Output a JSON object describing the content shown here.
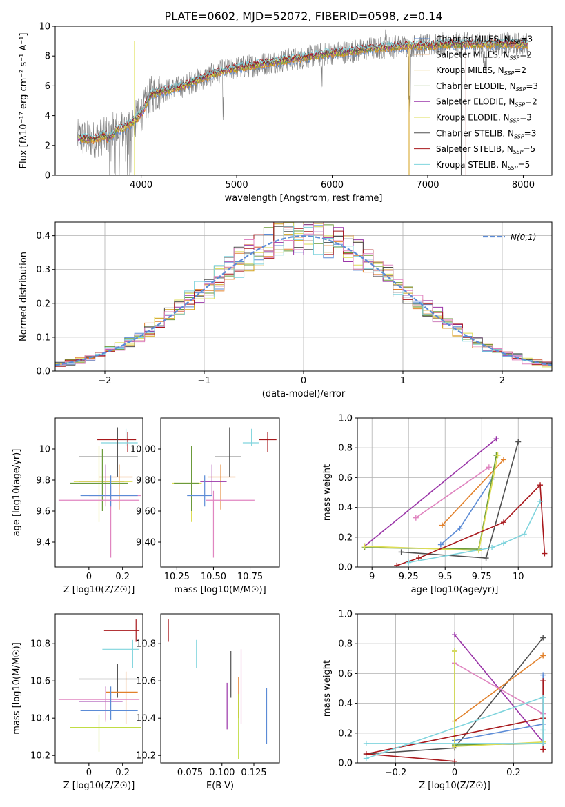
{
  "colors": {
    "chabrier_miles": "#5b8bd6",
    "salpeter_miles": "#e2812b",
    "kroupa_miles": "#d4a21c",
    "chabrier_elodie": "#6b9a3a",
    "salpeter_elodie": "#9a35a8",
    "kroupa_elodie": "#dddd55",
    "chabrier_stelib": "#505050",
    "salpeter_stelib": "#a8181c",
    "kroupa_stelib": "#7fd4dd",
    "pink": "#e085c0",
    "lime": "#b8d82a",
    "data": "#808080",
    "gauss": "#5b8bd6"
  },
  "legend_entries": [
    {
      "label": "Chabrier MILES, N",
      "sub": "SSP",
      "tail": "=3",
      "color": "chabrier_miles"
    },
    {
      "label": "Salpeter MILES, N",
      "sub": "SSP",
      "tail": "=2",
      "color": "salpeter_miles"
    },
    {
      "label": "Kroupa MILES, N",
      "sub": "SSP",
      "tail": "=2",
      "color": "kroupa_miles"
    },
    {
      "label": "Chabrier ELODIE, N",
      "sub": "SSP",
      "tail": "=3",
      "color": "chabrier_elodie"
    },
    {
      "label": "Salpeter ELODIE, N",
      "sub": "SSP",
      "tail": "=2",
      "color": "salpeter_elodie"
    },
    {
      "label": "Kroupa ELODIE, N",
      "sub": "SSP",
      "tail": "=3",
      "color": "kroupa_elodie"
    },
    {
      "label": "Chabrier STELIB, N",
      "sub": "SSP",
      "tail": "=3",
      "color": "chabrier_stelib"
    },
    {
      "label": "Salpeter STELIB, N",
      "sub": "SSP",
      "tail": "=5",
      "color": "salpeter_stelib"
    },
    {
      "label": "Kroupa STELIB, N",
      "sub": "SSP",
      "tail": "=5",
      "color": "kroupa_stelib"
    }
  ],
  "chart_data": [
    {
      "id": "spectrum",
      "type": "line",
      "title": "PLATE=0602, MJD=52072, FIBERID=0598, z=0.14",
      "xlabel": "wavelength [Angstrom, rest frame]",
      "ylabel": "Flux [fλ10⁻¹⁷ erg cm⁻² s⁻¹ A⁻¹]",
      "xlim": [
        3100,
        8300
      ],
      "ylim": [
        0,
        10
      ],
      "xticks": [
        4000,
        5000,
        6000,
        7000,
        8000
      ],
      "yticks": [
        0,
        2,
        4,
        6,
        8,
        10
      ],
      "continuum_x": [
        3340,
        3500,
        3600,
        3700,
        3800,
        3900,
        4000,
        4100,
        4200,
        4400,
        4600,
        4800,
        5000,
        5200,
        5400,
        5600,
        5800,
        6000,
        6200,
        6400,
        6600,
        6800,
        7000,
        7200,
        7400,
        7600,
        7800,
        8000
      ],
      "continuum_y": [
        2.5,
        2.4,
        2.6,
        3.0,
        3.1,
        3.5,
        4.1,
        5.4,
        5.6,
        5.9,
        6.4,
        6.9,
        7.2,
        7.4,
        7.6,
        7.8,
        8.0,
        8.2,
        8.3,
        8.5,
        8.6,
        8.7,
        8.7,
        8.8,
        8.8,
        8.8,
        8.8,
        8.8
      ],
      "series": [
        {
          "name": "Chabrier MILES, NSSP=3",
          "color": "chabrier_miles"
        },
        {
          "name": "Salpeter MILES, NSSP=2",
          "color": "salpeter_miles"
        },
        {
          "name": "Kroupa MILES, NSSP=2",
          "color": "kroupa_miles"
        },
        {
          "name": "Chabrier ELODIE, NSSP=3",
          "color": "chabrier_elodie"
        },
        {
          "name": "Salpeter ELODIE, NSSP=2",
          "color": "salpeter_elodie"
        },
        {
          "name": "Kroupa ELODIE, NSSP=3",
          "color": "kroupa_elodie"
        },
        {
          "name": "Chabrier STELIB, NSSP=3",
          "color": "chabrier_stelib"
        },
        {
          "name": "Salpeter STELIB, NSSP=5",
          "color": "salpeter_stelib"
        },
        {
          "name": "Kroupa STELIB, NSSP=5",
          "color": "kroupa_stelib"
        }
      ]
    },
    {
      "id": "residuals",
      "type": "line",
      "xlabel": "(data-model)/error",
      "ylabel": "Normed distribution",
      "xlim": [
        -2.5,
        2.5
      ],
      "ylim": [
        0,
        0.44
      ],
      "xticks": [
        -2,
        -1,
        0,
        1,
        2
      ],
      "yticks": [
        0.0,
        0.1,
        0.2,
        0.3,
        0.4
      ],
      "grid": true,
      "legend": "N(0,1)",
      "bin_width": 0.1
    },
    {
      "id": "age_vs_Z",
      "type": "scatter",
      "xlabel": "Z [log10(Z/Z☉)]",
      "ylabel": "age [log10(age/yr)]",
      "xlim": [
        -0.2,
        0.32
      ],
      "ylim": [
        9.24,
        10.2
      ],
      "xticks": [
        0.0,
        0.2
      ],
      "yticks": [
        9.4,
        9.6,
        9.8,
        10.0
      ],
      "points": [
        {
          "x": 0.23,
          "xerr": [
            0.18,
            0.05
          ],
          "y": 10.06,
          "yerr": [
            0.08,
            0.05
          ],
          "color": "salpeter_stelib"
        },
        {
          "x": 0.22,
          "xerr": [
            0.15,
            0.07
          ],
          "y": 10.04,
          "yerr": [
            0.02,
            0.09
          ],
          "color": "kroupa_stelib"
        },
        {
          "x": 0.17,
          "xerr": [
            0.23,
            0.12
          ],
          "y": 9.95,
          "yerr": [
            0.13,
            0.19
          ],
          "color": "chabrier_stelib"
        },
        {
          "x": 0.18,
          "xerr": [
            0.12,
            0.08
          ],
          "y": 9.82,
          "yerr": [
            0.21,
            0.08
          ],
          "color": "salpeter_miles"
        },
        {
          "x": 0.1,
          "xerr": [
            0.16,
            0.11
          ],
          "y": 9.79,
          "yerr": [
            0.09,
            0.11
          ],
          "color": "salpeter_elodie"
        },
        {
          "x": 0.06,
          "xerr": [
            0.15,
            0.2
          ],
          "y": 9.79,
          "yerr": [
            0.26,
            0.23
          ],
          "color": "kroupa_elodie"
        },
        {
          "x": 0.08,
          "xerr": [
            0.19,
            0.15
          ],
          "y": 9.78,
          "yerr": [
            0.18,
            0.22
          ],
          "color": "chabrier_elodie"
        },
        {
          "x": 0.13,
          "xerr": [
            0.13,
            0.18
          ],
          "y": 9.7,
          "yerr": [
            0.4,
            0.06
          ],
          "color": "pink"
        },
        {
          "x": 0.13,
          "xerr": [
            0.18,
            0.16
          ],
          "y": 9.7,
          "yerr": [
            0.07,
            0.13
          ],
          "color": "chabrier_miles"
        },
        {
          "x": 0.1,
          "xerr": [
            0.28,
            0.2
          ],
          "y": 9.67,
          "yerr": [
            0.04,
            0.04
          ],
          "color": "pink"
        }
      ]
    },
    {
      "id": "age_vs_mass",
      "type": "scatter",
      "xlabel": "mass [log10(M/M☉)]",
      "ylabel": "",
      "xlim": [
        10.14,
        10.95
      ],
      "ylim": [
        9.24,
        10.2
      ],
      "xticks": [
        10.25,
        10.5,
        10.75
      ],
      "yticks": [
        9.4,
        9.6,
        9.8,
        10.0
      ],
      "points": [
        {
          "x": 10.87,
          "xerr": [
            0.06,
            0.06
          ],
          "y": 10.06,
          "yerr": [
            0.08,
            0.05
          ],
          "color": "salpeter_stelib"
        },
        {
          "x": 10.76,
          "xerr": [
            0.06,
            0.05
          ],
          "y": 10.04,
          "yerr": [
            0.02,
            0.09
          ],
          "color": "kroupa_stelib"
        },
        {
          "x": 10.61,
          "xerr": [
            0.1,
            0.08
          ],
          "y": 9.95,
          "yerr": [
            0.13,
            0.19
          ],
          "color": "chabrier_stelib"
        },
        {
          "x": 10.55,
          "xerr": [
            0.09,
            0.1
          ],
          "y": 9.82,
          "yerr": [
            0.21,
            0.08
          ],
          "color": "salpeter_miles"
        },
        {
          "x": 10.49,
          "xerr": [
            0.08,
            0.1
          ],
          "y": 9.79,
          "yerr": [
            0.09,
            0.11
          ],
          "color": "salpeter_elodie"
        },
        {
          "x": 10.35,
          "xerr": [
            0.13,
            0.07
          ],
          "y": 9.78,
          "yerr": [
            0.25,
            0.23
          ],
          "color": "kroupa_elodie"
        },
        {
          "x": 10.35,
          "xerr": [
            0.12,
            0.05
          ],
          "y": 9.78,
          "yerr": [
            0.18,
            0.24
          ],
          "color": "chabrier_elodie"
        },
        {
          "x": 10.5,
          "xerr": [
            0.05,
            0.28
          ],
          "y": 9.67,
          "yerr": [
            0.37,
            0.06
          ],
          "color": "pink"
        },
        {
          "x": 10.44,
          "xerr": [
            0.12,
            0.05
          ],
          "y": 9.7,
          "yerr": [
            0.07,
            0.13
          ],
          "color": "chabrier_miles"
        }
      ]
    },
    {
      "id": "mass_weight_vs_age",
      "type": "line",
      "xlabel": "age [log10(age/yr)]",
      "ylabel": "mass weight",
      "xlim": [
        8.9,
        10.23
      ],
      "ylim": [
        0,
        1.0
      ],
      "xticks": [
        9.0,
        9.25,
        9.5,
        9.75,
        10.0
      ],
      "yticks": [
        0.0,
        0.2,
        0.4,
        0.6,
        0.8,
        1.0
      ],
      "grid": true,
      "series": [
        {
          "color": "salpeter_elodie",
          "x": [
            8.95,
            9.85
          ],
          "y": [
            0.14,
            0.86
          ]
        },
        {
          "color": "chabrier_stelib",
          "x": [
            9.2,
            9.78,
            10.0
          ],
          "y": [
            0.1,
            0.06,
            0.84
          ]
        },
        {
          "color": "salpeter_miles",
          "x": [
            9.48,
            9.9
          ],
          "y": [
            0.28,
            0.72
          ]
        },
        {
          "color": "pink",
          "x": [
            9.3,
            9.8
          ],
          "y": [
            0.33,
            0.67
          ]
        },
        {
          "color": "chabrier_miles",
          "x": [
            9.47,
            9.6,
            9.82
          ],
          "y": [
            0.15,
            0.26,
            0.59
          ]
        },
        {
          "color": "chabrier_elodie",
          "x": [
            8.95,
            9.73,
            9.85
          ],
          "y": [
            0.13,
            0.12,
            0.75
          ]
        },
        {
          "color": "kroupa_elodie",
          "x": [
            8.95,
            9.73,
            9.86
          ],
          "y": [
            0.14,
            0.11,
            0.75
          ]
        },
        {
          "color": "salpeter_stelib",
          "x": [
            9.17,
            9.32,
            9.9,
            10.15,
            10.18
          ],
          "y": [
            0.01,
            0.06,
            0.3,
            0.55,
            0.09
          ]
        },
        {
          "color": "kroupa_stelib",
          "x": [
            9.25,
            9.82,
            9.9,
            10.04,
            10.15
          ],
          "y": [
            0.03,
            0.13,
            0.16,
            0.22,
            0.44
          ]
        }
      ]
    },
    {
      "id": "mass_vs_Z",
      "type": "scatter",
      "xlabel": "Z [log10(Z/Z☉)]",
      "ylabel": "mass [log10(M/M☉)]",
      "xlim": [
        -0.2,
        0.32
      ],
      "ylim": [
        10.16,
        10.96
      ],
      "xticks": [
        0.0,
        0.2
      ],
      "yticks": [
        10.2,
        10.4,
        10.6,
        10.8
      ],
      "points": [
        {
          "x": 0.28,
          "xerr": [
            0.19,
            0.02
          ],
          "y": 10.87,
          "yerr": [
            0.06,
            0.06
          ],
          "color": "salpeter_stelib"
        },
        {
          "x": 0.26,
          "xerr": [
            0.18,
            0.04
          ],
          "y": 10.77,
          "yerr": [
            0.1,
            0.05
          ],
          "color": "kroupa_stelib"
        },
        {
          "x": 0.17,
          "xerr": [
            0.23,
            0.13
          ],
          "y": 10.61,
          "yerr": [
            0.1,
            0.08
          ],
          "color": "chabrier_stelib"
        },
        {
          "x": 0.22,
          "xerr": [
            0.12,
            0.07
          ],
          "y": 10.54,
          "yerr": [
            0.17,
            0.11
          ],
          "color": "salpeter_miles"
        },
        {
          "x": 0.1,
          "xerr": [
            0.16,
            0.1
          ],
          "y": 10.49,
          "yerr": [
            0.1,
            0.08
          ],
          "color": "salpeter_elodie"
        },
        {
          "x": 0.1,
          "xerr": [
            0.28,
            0.2
          ],
          "y": 10.5,
          "yerr": [
            0.12,
            0.06
          ],
          "color": "pink"
        },
        {
          "x": 0.13,
          "xerr": [
            0.18,
            0.16
          ],
          "y": 10.44,
          "yerr": [
            0.05,
            0.13
          ],
          "color": "chabrier_miles"
        },
        {
          "x": 0.06,
          "xerr": [
            0.17,
            0.25
          ],
          "y": 10.35,
          "yerr": [
            0.13,
            0.07
          ],
          "color": "lime"
        }
      ]
    },
    {
      "id": "mass_vs_ebv",
      "type": "scatter",
      "xlabel": "E(B-V)",
      "ylabel": "",
      "xlim": [
        0.052,
        0.145
      ],
      "ylim": [
        10.16,
        10.96
      ],
      "xticks": [
        0.075,
        0.1,
        0.125
      ],
      "yticks": [
        10.2,
        10.4,
        10.6,
        10.8
      ],
      "points": [
        {
          "x": 0.058,
          "y": 10.87,
          "yerr": [
            0.06,
            0.06
          ],
          "color": "salpeter_stelib"
        },
        {
          "x": 0.08,
          "y": 10.77,
          "yerr": [
            0.1,
            0.05
          ],
          "color": "kroupa_stelib"
        },
        {
          "x": 0.107,
          "y": 10.61,
          "yerr": [
            0.1,
            0.15
          ],
          "color": "chabrier_stelib"
        },
        {
          "x": 0.115,
          "y": 10.54,
          "yerr": [
            0.17,
            0.23
          ],
          "color": "pink"
        },
        {
          "x": 0.113,
          "y": 10.49,
          "yerr": [
            0.09,
            0.13
          ],
          "color": "salpeter_miles"
        },
        {
          "x": 0.104,
          "y": 10.47,
          "yerr": [
            0.13,
            0.12
          ],
          "color": "salpeter_elodie"
        },
        {
          "x": 0.113,
          "y": 10.35,
          "yerr": [
            0.17,
            0.18
          ],
          "color": "lime"
        },
        {
          "x": 0.135,
          "y": 10.42,
          "yerr": [
            0.16,
            0.14
          ],
          "color": "chabrier_miles"
        }
      ]
    },
    {
      "id": "mass_weight_vs_Z",
      "type": "line",
      "xlabel": "Z [log10(Z/Z☉)]",
      "ylabel": "mass weight",
      "xlim": [
        -0.33,
        0.33
      ],
      "ylim": [
        0,
        1.0
      ],
      "xticks": [
        -0.2,
        0.0,
        0.2
      ],
      "yticks": [
        0.0,
        0.2,
        0.4,
        0.6,
        0.8,
        1.0
      ],
      "grid": true,
      "series": [
        {
          "color": "salpeter_elodie",
          "x": [
            0.0,
            0.3
          ],
          "y": [
            0.86,
            0.14
          ]
        },
        {
          "color": "chabrier_stelib",
          "x": [
            -0.3,
            0.0,
            0.3
          ],
          "y": [
            0.06,
            0.1,
            0.84
          ]
        },
        {
          "color": "salpeter_miles",
          "x": [
            0.0,
            0.3
          ],
          "y": [
            0.28,
            0.72
          ]
        },
        {
          "color": "pink",
          "x": [
            0.0,
            0.3
          ],
          "y": [
            0.67,
            0.33
          ]
        },
        {
          "color": "chabrier_miles",
          "x": [
            0.0,
            0.3,
            0.3
          ],
          "y": [
            0.15,
            0.26,
            0.59
          ]
        },
        {
          "color": "chabrier_elodie",
          "x": [
            0.0,
            0.0,
            0.3
          ],
          "y": [
            0.75,
            0.12,
            0.13
          ]
        },
        {
          "color": "kroupa_elodie",
          "x": [
            0.0,
            0.0,
            0.3
          ],
          "y": [
            0.75,
            0.11,
            0.14
          ]
        },
        {
          "color": "salpeter_stelib",
          "x": [
            0.0,
            -0.3,
            0.3,
            0.3,
            0.3
          ],
          "y": [
            0.01,
            0.06,
            0.3,
            0.55,
            0.09
          ]
        },
        {
          "color": "kroupa_stelib",
          "x": [
            -0.3,
            0.3,
            0.3,
            0.3,
            -0.3
          ],
          "y": [
            0.03,
            0.44,
            0.22,
            0.13,
            0.13
          ]
        }
      ]
    }
  ]
}
